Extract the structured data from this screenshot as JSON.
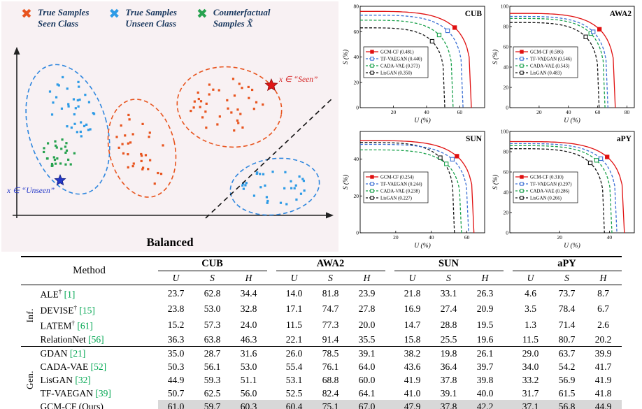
{
  "scatter_panel": {
    "caption": "Balanced",
    "legend": [
      {
        "line1": "True Samples",
        "line2": "Seen Class",
        "color": "#e8541e"
      },
      {
        "line1": "True Samples",
        "line2": "Unseen Class",
        "color": "#2e9be6"
      },
      {
        "line1": "Counterfactual",
        "line2": "Samples X̃",
        "color": "#27a24f"
      }
    ],
    "annotations": {
      "seen": {
        "text": "x ∈ “Seen”",
        "color": "#d42020"
      },
      "unseen": {
        "text": "x ∈ “Unseen”",
        "color": "#2438c8"
      }
    }
  },
  "chart_data": [
    {
      "type": "line",
      "title": "CUB",
      "xlabel": "U (%)",
      "ylabel": "S (%)",
      "xlim": [
        0,
        75
      ],
      "ylim": [
        0,
        80
      ],
      "xticks": [
        20,
        40,
        60
      ],
      "yticks": [
        0,
        20,
        40,
        60,
        80
      ],
      "series": [
        {
          "name": "GCM-CF",
          "auc": "0.481",
          "color": "#e01010",
          "dash": "solid",
          "filled": true,
          "s_intercept": 76,
          "u_intercept": 67
        },
        {
          "name": "TF-VAEGAN",
          "auc": "0.440",
          "color": "#3b6fd4",
          "dash": "dashed",
          "filled": false,
          "s_intercept": 73,
          "u_intercept": 62
        },
        {
          "name": "CADA-VAE",
          "auc": "0.373",
          "color": "#19a14b",
          "dash": "dashed",
          "filled": false,
          "s_intercept": 69,
          "u_intercept": 56
        },
        {
          "name": "LisGAN",
          "auc": "0.350",
          "color": "#151515",
          "dash": "dashed",
          "filled": false,
          "s_intercept": 63,
          "u_intercept": 51
        }
      ]
    },
    {
      "type": "line",
      "title": "AWA2",
      "xlabel": "U (%)",
      "ylabel": "S (%)",
      "xlim": [
        0,
        85
      ],
      "ylim": [
        0,
        100
      ],
      "xticks": [
        20,
        40,
        60,
        80
      ],
      "yticks": [
        0,
        20,
        40,
        60,
        80,
        100
      ],
      "series": [
        {
          "name": "GCM-CF",
          "auc": "0.586",
          "color": "#e01010",
          "dash": "solid",
          "filled": true,
          "s_intercept": 93,
          "u_intercept": 72
        },
        {
          "name": "TF-VAEGAN",
          "auc": "0.546",
          "color": "#3b6fd4",
          "dash": "dashed",
          "filled": false,
          "s_intercept": 90,
          "u_intercept": 67
        },
        {
          "name": "CADA-VAE",
          "auc": "0.543",
          "color": "#19a14b",
          "dash": "dashed",
          "filled": false,
          "s_intercept": 88,
          "u_intercept": 65
        },
        {
          "name": "LisGAN",
          "auc": "0.483",
          "color": "#151515",
          "dash": "dashed",
          "filled": false,
          "s_intercept": 84,
          "u_intercept": 61
        }
      ]
    },
    {
      "type": "line",
      "title": "SUN",
      "xlabel": "U (%)",
      "ylabel": "S (%)",
      "xlim": [
        0,
        70
      ],
      "ylim": [
        0,
        55
      ],
      "xticks": [
        20,
        40,
        60
      ],
      "yticks": [
        0,
        20,
        40
      ],
      "series": [
        {
          "name": "GCM-CF",
          "auc": "0.254",
          "color": "#e01010",
          "dash": "solid",
          "filled": true,
          "s_intercept": 50,
          "u_intercept": 64
        },
        {
          "name": "TF-VAEGAN",
          "auc": "0.244",
          "color": "#3b6fd4",
          "dash": "dashed",
          "filled": false,
          "s_intercept": 48,
          "u_intercept": 61
        },
        {
          "name": "CADA-VAE",
          "auc": "0.238",
          "color": "#19a14b",
          "dash": "dashed",
          "filled": false,
          "s_intercept": 45,
          "u_intercept": 57
        },
        {
          "name": "LisGAN",
          "auc": "0.227",
          "color": "#151515",
          "dash": "dashed",
          "filled": false,
          "s_intercept": 49,
          "u_intercept": 53
        }
      ]
    },
    {
      "type": "line",
      "title": "aPY",
      "xlabel": "U (%)",
      "ylabel": "S (%)",
      "xlim": [
        0,
        50
      ],
      "ylim": [
        0,
        100
      ],
      "xticks": [
        20,
        40
      ],
      "yticks": [
        0,
        20,
        40,
        60,
        80,
        100
      ],
      "series": [
        {
          "name": "GCM-CF",
          "auc": "0.310",
          "color": "#e01010",
          "dash": "solid",
          "filled": true,
          "s_intercept": 90,
          "u_intercept": 46
        },
        {
          "name": "TF-VAEGAN",
          "auc": "0.297",
          "color": "#3b6fd4",
          "dash": "dashed",
          "filled": false,
          "s_intercept": 88,
          "u_intercept": 43
        },
        {
          "name": "CADA-VAE",
          "auc": "0.286",
          "color": "#19a14b",
          "dash": "dashed",
          "filled": false,
          "s_intercept": 86,
          "u_intercept": 41
        },
        {
          "name": "LisGAN",
          "auc": "0.266",
          "color": "#151515",
          "dash": "dashed",
          "filled": false,
          "s_intercept": 83,
          "u_intercept": 38
        }
      ]
    }
  ],
  "table": {
    "method_header": "Method",
    "col_groups": [
      "CUB",
      "AWA2",
      "SUN",
      "aPY"
    ],
    "sub_cols": [
      "U",
      "S",
      "H"
    ],
    "citation_color": "#00a651",
    "highlight_color": "#d8d8d8",
    "row_groups": [
      {
        "label": "Inf.",
        "rows": [
          {
            "method": "ALE",
            "sup": "†",
            "cite": "[1]",
            "values": [
              "23.7",
              "62.8",
              "34.4",
              "14.0",
              "81.8",
              "23.9",
              "21.8",
              "33.1",
              "26.3",
              "4.6",
              "73.7",
              "8.7"
            ],
            "bold": []
          },
          {
            "method": "DEVISE",
            "sup": "†",
            "cite": "[15]",
            "values": [
              "23.8",
              "53.0",
              "32.8",
              "17.1",
              "74.7",
              "27.8",
              "16.9",
              "27.4",
              "20.9",
              "3.5",
              "78.4",
              "6.7"
            ],
            "bold": []
          },
          {
            "method": "LATEM",
            "sup": "†",
            "cite": "[61]",
            "values": [
              "15.2",
              "57.3",
              "24.0",
              "11.5",
              "77.3",
              "20.0",
              "14.7",
              "28.8",
              "19.5",
              "1.3",
              "71.4",
              "2.6"
            ],
            "bold": []
          },
          {
            "method": "RelationNet",
            "sup": "",
            "cite": "[56]",
            "values": [
              "36.3",
              "63.8",
              "46.3",
              "22.1",
              "91.4",
              "35.5",
              "15.8",
              "25.5",
              "19.6",
              "11.5",
              "80.7",
              "20.2"
            ],
            "bold": [
              1,
              4,
              10
            ]
          }
        ]
      },
      {
        "label": "Gen.",
        "rows": [
          {
            "method": "GDAN",
            "sup": "",
            "cite": "[21]",
            "values": [
              "35.0",
              "28.7",
              "31.6",
              "26.0",
              "78.5",
              "39.1",
              "38.2",
              "19.8",
              "26.1",
              "29.0",
              "63.7",
              "39.9"
            ],
            "bold": []
          },
          {
            "method": "CADA-VAE",
            "sup": "",
            "cite": "[52]",
            "values": [
              "50.3",
              "56.1",
              "53.0",
              "55.4",
              "76.1",
              "64.0",
              "43.6",
              "36.4",
              "39.7",
              "34.0",
              "54.2",
              "41.7"
            ],
            "bold": []
          },
          {
            "method": "LisGAN",
            "sup": "",
            "cite": "[32]",
            "values": [
              "44.9",
              "59.3",
              "51.1",
              "53.1",
              "68.8",
              "60.0",
              "41.9",
              "37.8",
              "39.8",
              "33.2",
              "56.9",
              "41.9"
            ],
            "bold": []
          },
          {
            "method": "TF-VAEGAN",
            "sup": "",
            "cite": "[39]",
            "values": [
              "50.7",
              "62.5",
              "56.0",
              "52.5",
              "82.4",
              "64.1",
              "41.0",
              "39.1",
              "40.0",
              "31.7",
              "61.5",
              "41.8"
            ],
            "bold": [
              7
            ]
          },
          {
            "method": "GCM-CF (Ours)",
            "sup": "",
            "cite": "",
            "bold_method": true,
            "highlight": true,
            "values": [
              "61.0",
              "59.7",
              "60.3",
              "60.4",
              "75.1",
              "67.0",
              "47.9",
              "37.8",
              "42.2",
              "37.1",
              "56.8",
              "44.9"
            ],
            "bold": [
              0,
              2,
              3,
              5,
              6,
              8,
              9,
              11
            ]
          }
        ]
      }
    ]
  }
}
